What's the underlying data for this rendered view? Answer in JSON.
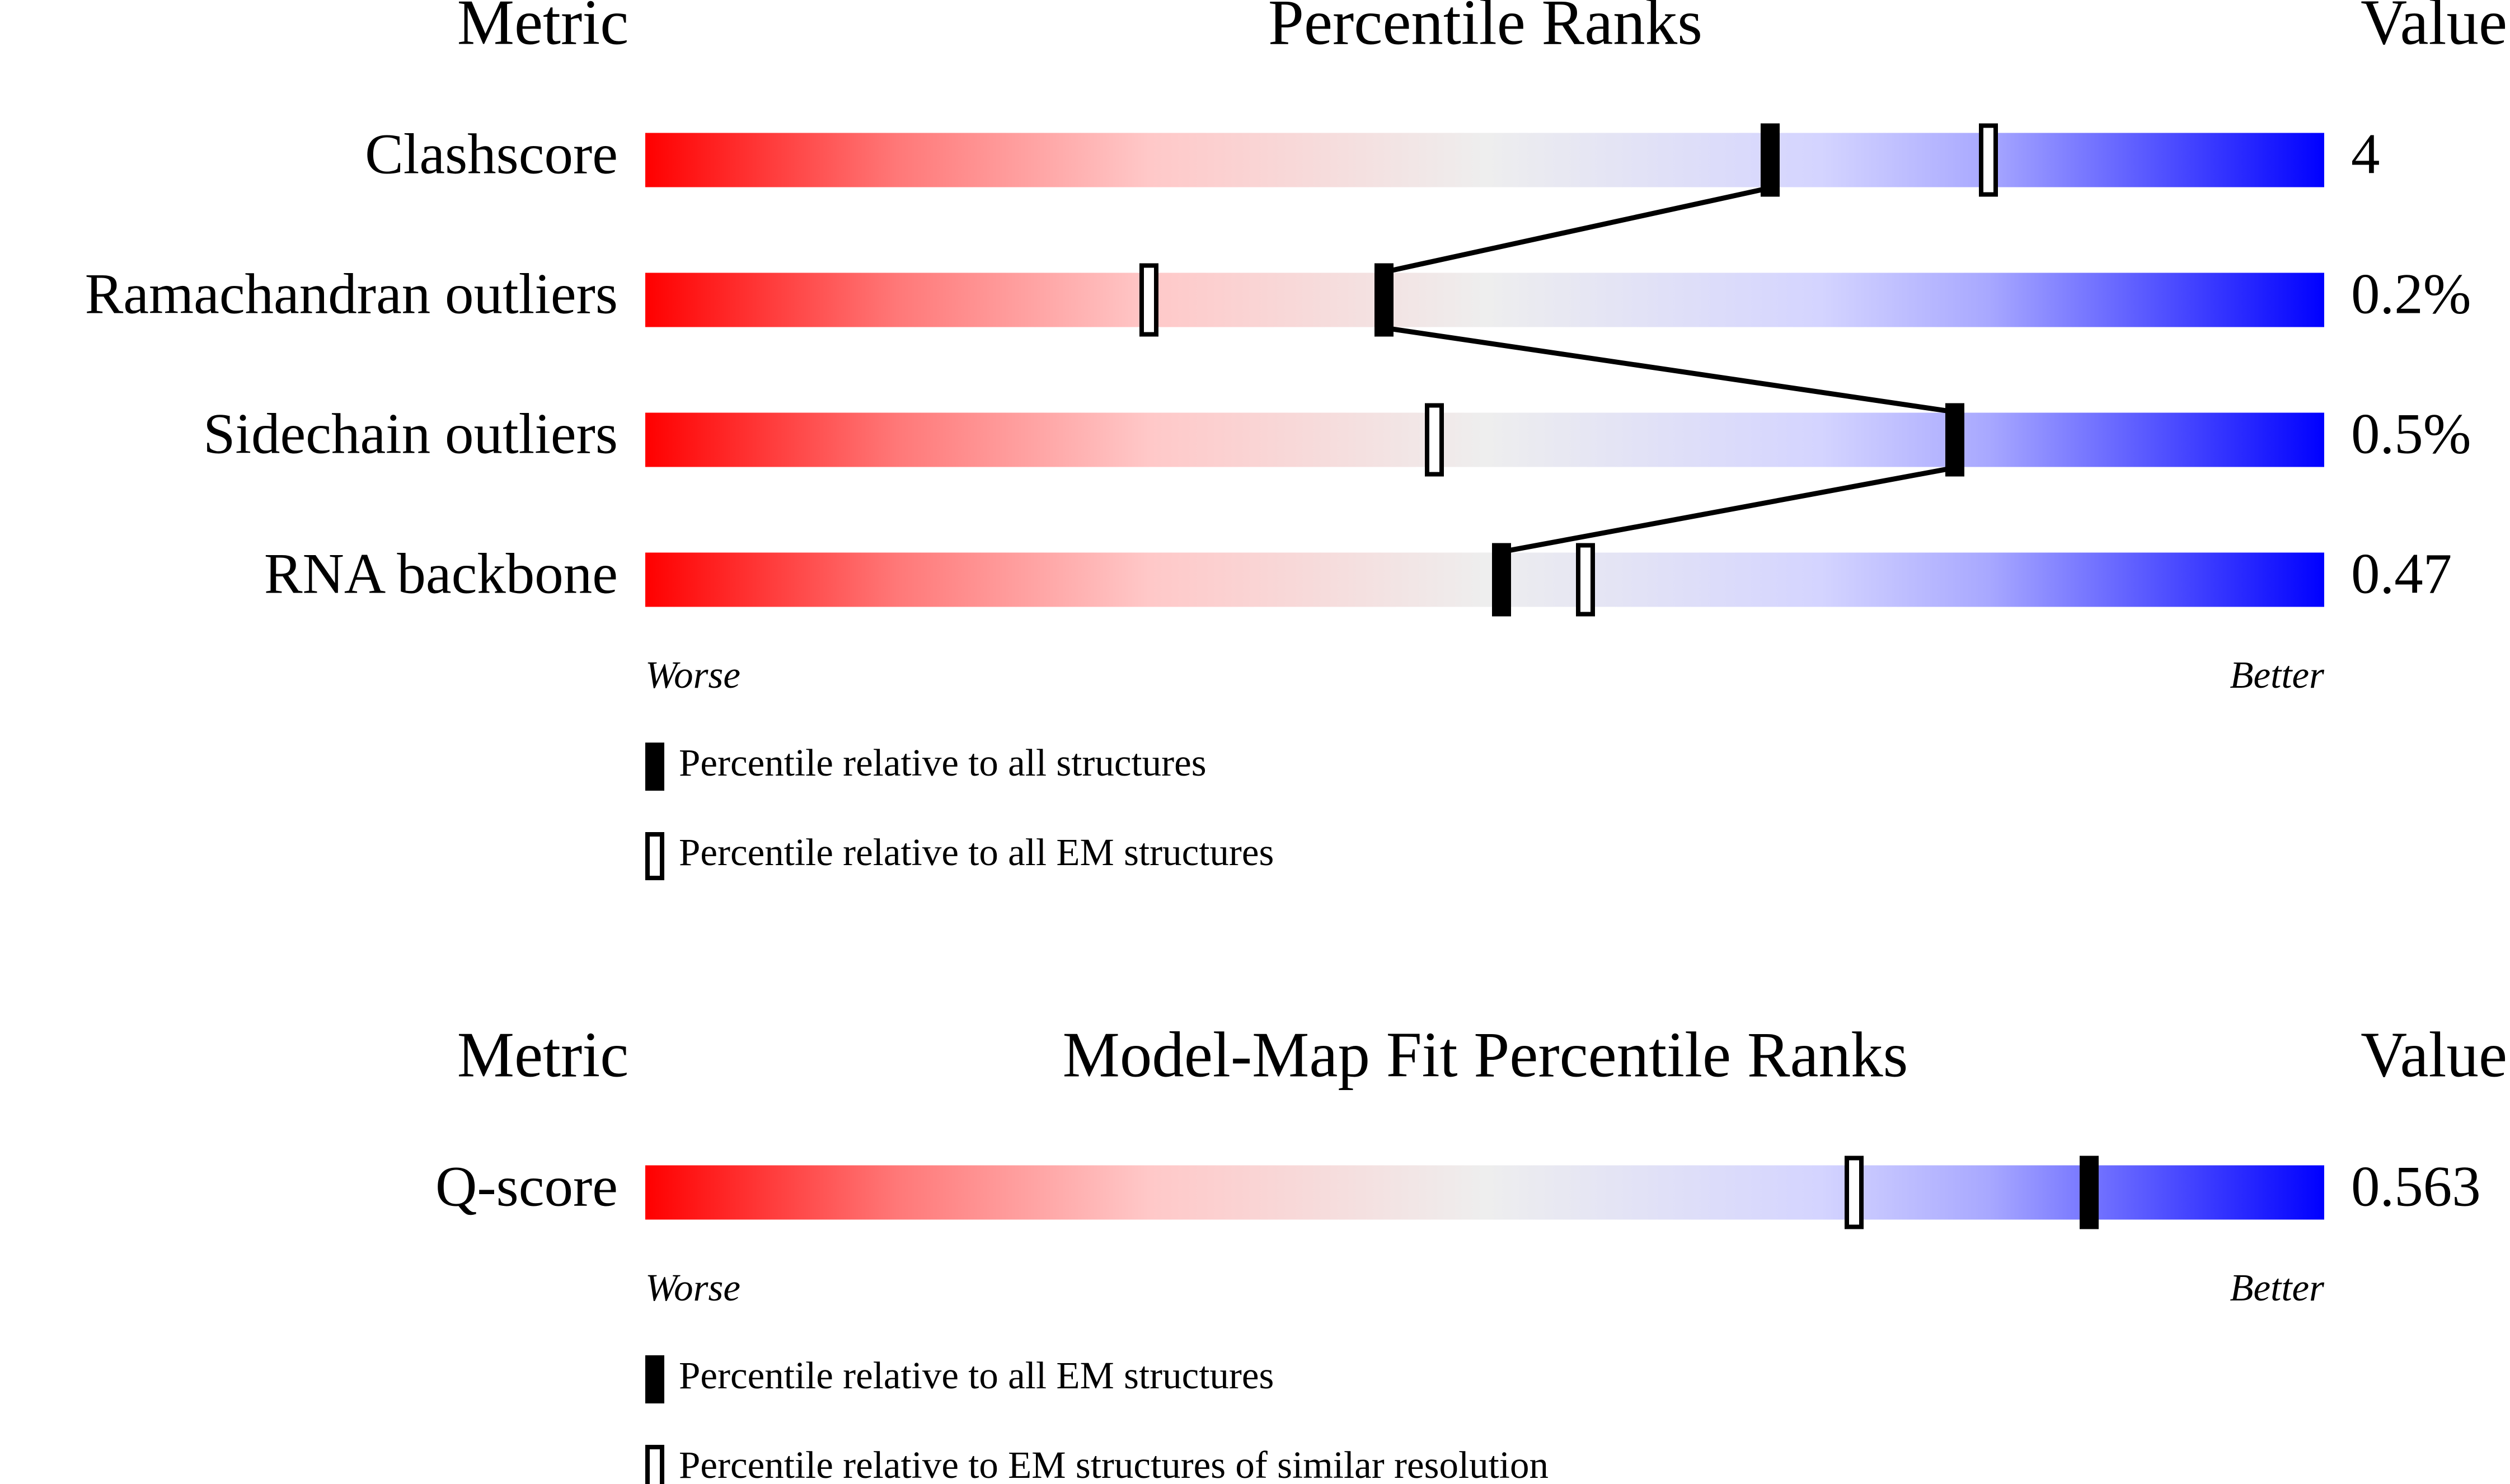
{
  "chart_data": [
    {
      "type": "slider",
      "metric_header": "Metric",
      "title": "Percentile Ranks",
      "value_header": "Value",
      "categories": [
        "Clashscore",
        "Ramachandran outliers",
        "Sidechain outliers",
        "RNA backbone"
      ],
      "metric_values": [
        4,
        {
          "value": 0.2,
          "label": "0.2%"
        },
        {
          "value": 0.5,
          "label": "0.5%"
        },
        0.47
      ],
      "xlim": [
        0,
        100
      ],
      "worse_label": "Worse",
      "better_label": "Better",
      "series": [
        {
          "name": "Percentile relative to all structures",
          "style": "filled",
          "connected": true,
          "values": [
            67,
            44,
            78,
            51
          ]
        },
        {
          "name": "Percentile relative to all EM structures",
          "style": "hollow",
          "connected": false,
          "values": [
            80,
            30,
            47,
            56
          ]
        }
      ]
    },
    {
      "type": "slider",
      "metric_header": "Metric",
      "title": "Model-Map Fit Percentile Ranks",
      "value_header": "Value",
      "categories": [
        "Q-score"
      ],
      "metric_values": [
        0.563
      ],
      "xlim": [
        0,
        100
      ],
      "worse_label": "Worse",
      "better_label": "Better",
      "series": [
        {
          "name": "Percentile relative to all EM structures",
          "style": "filled",
          "connected": true,
          "values": [
            86
          ]
        },
        {
          "name": "Percentile relative to EM structures of similar resolution",
          "style": "hollow",
          "connected": false,
          "values": [
            72
          ]
        }
      ]
    }
  ]
}
